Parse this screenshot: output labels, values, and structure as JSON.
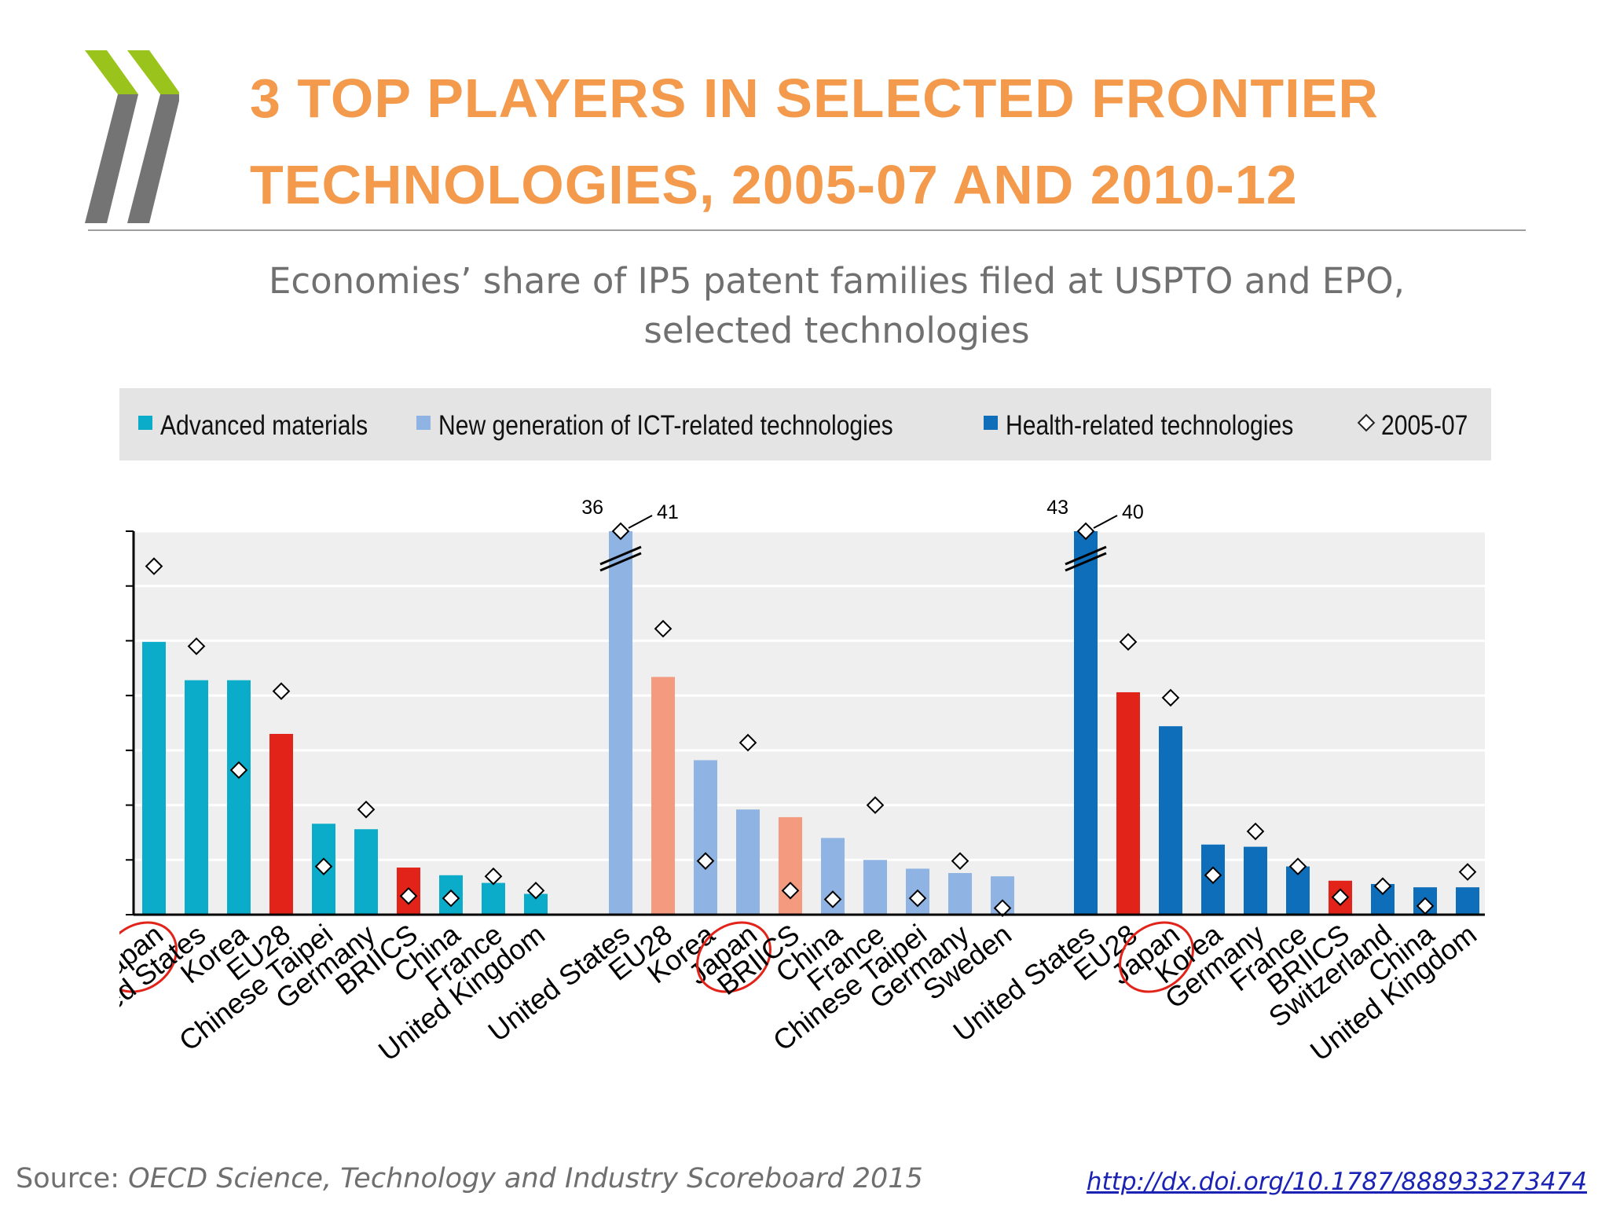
{
  "header": {
    "title_line1": "3 Top players in selected frontier",
    "title_line2": "technologies, 2005-07 and 2010-12",
    "subtitle_line1": "Economies’ share of IP5 patent families filed at USPTO and EPO,",
    "subtitle_line2": "selected technologies"
  },
  "colors": {
    "advanced_materials": "#0aacc9",
    "ict": "#8fb3e3",
    "health": "#0f6eb9",
    "aggregate_advanced": "#e2231a",
    "aggregate_ict": "#f49a7e",
    "aggregate_health": "#e2231a",
    "title": "#f39a4c",
    "highlight_circle": "#e2231a"
  },
  "chart_data": {
    "type": "bar",
    "ylabel": "%",
    "ylim": [
      0,
      35
    ],
    "yticks": [
      0,
      5,
      10,
      15,
      20,
      25,
      30,
      35
    ],
    "grid": true,
    "legend_position": "top",
    "legend": [
      {
        "label": "Advanced materials",
        "marker": "square",
        "color": "#0aacc9"
      },
      {
        "label": "New generation of ICT-related technologies",
        "marker": "square",
        "color": "#8fb3e3"
      },
      {
        "label": "Health-related technologies",
        "marker": "square",
        "color": "#0f6eb9"
      },
      {
        "label": "2005-07",
        "marker": "diamond"
      }
    ],
    "groups": [
      {
        "series": "Advanced materials",
        "categories": [
          "Japan",
          "United States",
          "Korea",
          "EU28",
          "Chinese Taipei",
          "Germany",
          "BRIICS",
          "China",
          "France",
          "United Kingdom"
        ],
        "values_2010_12": [
          24.9,
          21.4,
          21.4,
          16.5,
          8.3,
          7.8,
          4.3,
          3.6,
          2.9,
          1.9
        ],
        "values_2005_07": [
          31.8,
          24.5,
          13.2,
          20.4,
          4.4,
          9.6,
          1.7,
          1.5,
          3.5,
          2.2
        ],
        "aggregate": [
          false,
          false,
          false,
          true,
          false,
          false,
          true,
          false,
          false,
          false
        ],
        "highlight": [
          "Japan"
        ]
      },
      {
        "series": "New generation of ICT-related technologies",
        "categories": [
          "United States",
          "EU28",
          "Korea",
          "Japan",
          "BRIICS",
          "China",
          "France",
          "Chinese Taipei",
          "Germany",
          "Sweden"
        ],
        "values_2010_12": [
          41,
          21.7,
          14.1,
          9.6,
          8.9,
          7.0,
          5.0,
          4.2,
          3.8,
          3.5
        ],
        "values_2005_07": [
          36,
          26.1,
          4.9,
          15.7,
          2.2,
          1.4,
          10.0,
          1.5,
          4.9,
          0.6
        ],
        "aggregate": [
          false,
          true,
          false,
          false,
          true,
          false,
          false,
          false,
          false,
          false
        ],
        "highlight": [
          "Japan"
        ],
        "break_labels": {
          "2005_07": "36",
          "2010_12": "41"
        }
      },
      {
        "series": "Health-related technologies",
        "categories": [
          "United States",
          "EU28",
          "Japan",
          "Korea",
          "Germany",
          "France",
          "BRIICS",
          "Switzerland",
          "China",
          "United Kingdom"
        ],
        "values_2010_12": [
          40,
          20.3,
          17.2,
          6.4,
          6.2,
          4.4,
          3.1,
          2.8,
          2.5,
          2.5
        ],
        "values_2005_07": [
          43,
          24.9,
          19.8,
          3.6,
          7.6,
          4.4,
          1.6,
          2.6,
          0.8,
          3.9
        ],
        "aggregate": [
          false,
          true,
          false,
          false,
          false,
          false,
          true,
          false,
          false,
          false
        ],
        "highlight": [
          "Japan"
        ],
        "break_labels": {
          "2005_07": "43",
          "2010_12": "40"
        }
      }
    ]
  },
  "footer": {
    "source_prefix": "Source: ",
    "source_text": "OECD Science, Technology and Industry Scoreboard 2015",
    "link": "http://dx.doi.org/10.1787/888933273474"
  }
}
